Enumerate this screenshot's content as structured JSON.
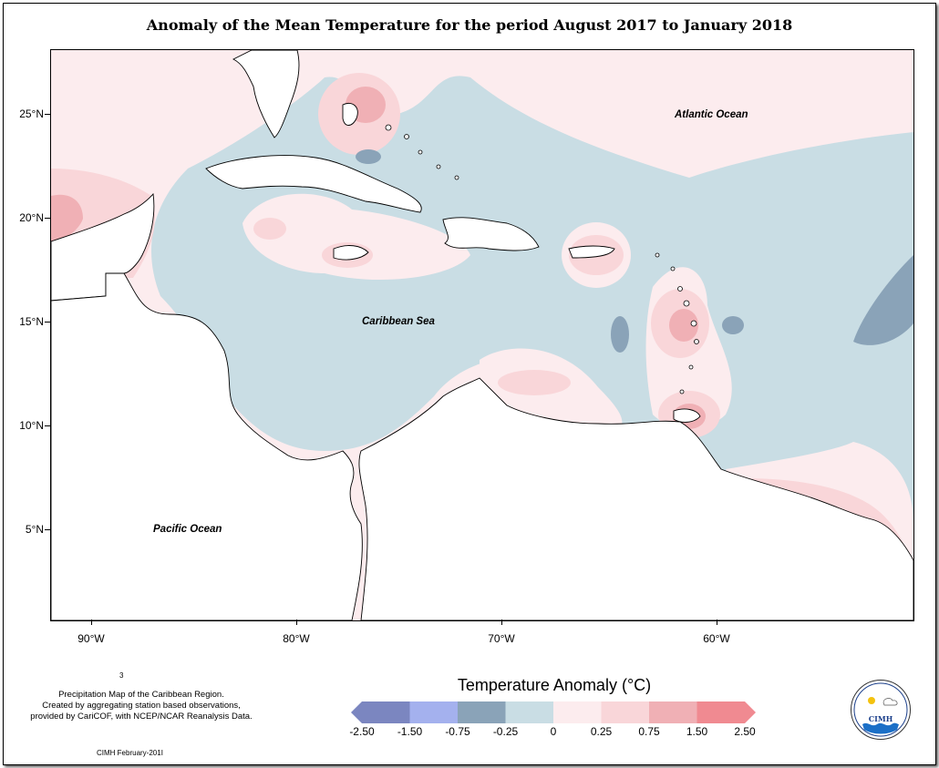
{
  "title": "Anomaly of the Mean Temperature for the period August 2017 to January 2018",
  "map": {
    "region": "Caribbean",
    "lon_range": [
      -92,
      -50
    ],
    "lat_range": [
      1,
      28
    ],
    "lat_ticks": [
      "25°N",
      "20°N",
      "15°N",
      "10°N",
      "5°N"
    ],
    "lon_ticks": [
      "90°W",
      "80°W",
      "70°W",
      "60°W"
    ],
    "labels": {
      "atlantic": "Atlantic Ocean",
      "caribbean": "Caribbean Sea",
      "pacific": "Pacific Ocean"
    }
  },
  "legend": {
    "title": "Temperature Anomaly (°C)",
    "bins": [
      {
        "color": "#7b86c0"
      },
      {
        "color": "#a4b1ee"
      },
      {
        "color": "#8aa3b8"
      },
      {
        "color": "#c9dde4"
      },
      {
        "color": "#fcecee"
      },
      {
        "color": "#f9d6d9"
      },
      {
        "color": "#f0b0b5"
      },
      {
        "color": "#f08a91"
      }
    ],
    "tick_labels": [
      "-2.50",
      "-1.50",
      "-0.75",
      "-0.25",
      "0",
      "0.25",
      "0.75",
      "1.50",
      "2.50"
    ]
  },
  "footer": {
    "credit_lines": [
      "Precipitation Map of the Caribbean Region.",
      "Created by aggregating station based observations,",
      "provided by CariCOF, with NCEP/NCAR Reanalysis Data."
    ],
    "mark": "3",
    "date": "CIMH February-201I",
    "logo_text": "CIMH"
  }
}
